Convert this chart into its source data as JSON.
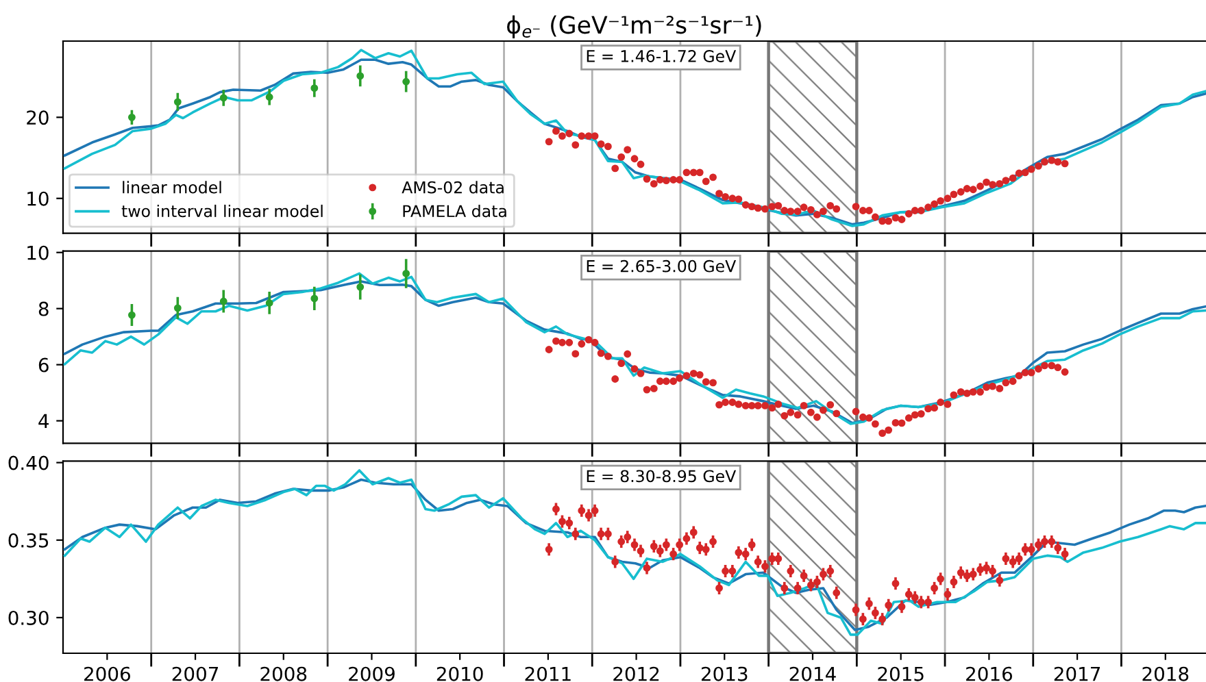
{
  "chart_data": [
    {
      "type": "line",
      "title": "ϕ$_{e⁻}$ (GeV⁻¹m⁻²s⁻¹sr⁻¹)",
      "annotations": [
        "E = 1.46-1.72 GeV"
      ],
      "xlim": [
        2006.0,
        2018.96
      ],
      "xticks": [
        {
          "value": 2007,
          "label": null
        },
        {
          "value": 2008,
          "label": null
        },
        {
          "value": 2009,
          "label": null
        },
        {
          "value": 2010,
          "label": null
        },
        {
          "value": 2011,
          "label": null
        },
        {
          "value": 2012,
          "label": null
        },
        {
          "value": 2013,
          "label": null
        },
        {
          "value": 2014,
          "label": null
        },
        {
          "value": 2015,
          "label": null
        },
        {
          "value": 2016,
          "label": null
        },
        {
          "value": 2017,
          "label": null
        },
        {
          "value": 2018,
          "label": null
        }
      ],
      "ylim": [
        5.7,
        29.4
      ],
      "yticks": [
        10,
        20
      ],
      "grid": "x",
      "legend": "bottom left",
      "tick_labels": "y",
      "bands": [
        {
          "axis": "x",
          "from": 2014,
          "to": 2015,
          "color": "#777777"
        }
      ],
      "series": [
        {
          "name": "linear model",
          "color": "#1f77b4",
          "x": [
            2006.02,
            2006.33,
            2006.59,
            2006.79,
            2007.0,
            2007.08,
            2007.21,
            2007.31,
            2007.47,
            2007.67,
            2007.78,
            2007.93,
            2008.24,
            2008.4,
            2008.61,
            2008.81,
            2009.0,
            2009.18,
            2009.38,
            2009.54,
            2009.69,
            2009.85,
            2009.95,
            2010.13,
            2010.26,
            2010.39,
            2010.52,
            2010.68,
            2010.83,
            2010.99,
            2011.15,
            2011.3,
            2011.46,
            2011.72,
            2011.87,
            2012.03,
            2012.18,
            2012.34,
            2012.49,
            2012.65,
            2012.8,
            2013.0,
            2013.22,
            2013.48,
            2013.68,
            2013.94,
            2014.15,
            2014.31,
            2014.51,
            2014.72,
            2014.95,
            2015.08,
            2015.29,
            2015.5,
            2015.7,
            2015.96,
            2016.22,
            2016.48,
            2016.74,
            2016.95,
            2017.16,
            2017.36,
            2017.57,
            2017.78,
            2017.98,
            2018.19,
            2018.45,
            2018.66,
            2018.81,
            2018.95
          ],
          "values": [
            15.3,
            16.9,
            17.9,
            18.7,
            18.9,
            19.0,
            19.7,
            21.1,
            21.7,
            22.5,
            23.1,
            23.4,
            23.3,
            24.0,
            25.4,
            25.6,
            25.5,
            25.9,
            27.1,
            27.1,
            26.6,
            26.8,
            26.5,
            24.8,
            23.8,
            23.8,
            24.4,
            24.6,
            24.0,
            23.7,
            22.0,
            20.6,
            19.2,
            18.3,
            17.6,
            17.2,
            14.9,
            14.5,
            13.2,
            12.7,
            12.5,
            12.3,
            11.2,
            9.8,
            9.4,
            8.7,
            8.2,
            7.9,
            8.1,
            7.6,
            6.8,
            7.0,
            7.6,
            8.3,
            8.4,
            9.0,
            9.7,
            11.0,
            12.4,
            13.8,
            15.1,
            15.5,
            16.4,
            17.3,
            18.5,
            19.7,
            21.5,
            21.7,
            22.5,
            22.9
          ]
        },
        {
          "name": "two interval linear model",
          "color": "#17becf",
          "x": [
            2006.02,
            2006.33,
            2006.59,
            2006.79,
            2007.0,
            2007.16,
            2007.28,
            2007.36,
            2007.47,
            2007.67,
            2007.83,
            2007.98,
            2008.14,
            2008.35,
            2008.5,
            2008.71,
            2008.92,
            2009.12,
            2009.28,
            2009.38,
            2009.54,
            2009.69,
            2009.82,
            2009.95,
            2010.13,
            2010.26,
            2010.47,
            2010.63,
            2010.78,
            2010.99,
            2011.15,
            2011.3,
            2011.46,
            2011.59,
            2011.72,
            2011.87,
            2012.03,
            2012.18,
            2012.34,
            2012.47,
            2012.59,
            2012.8,
            2013.0,
            2013.22,
            2013.48,
            2013.68,
            2013.94,
            2014.15,
            2014.31,
            2014.51,
            2014.72,
            2014.95,
            2015.08,
            2015.29,
            2015.5,
            2015.7,
            2015.96,
            2016.22,
            2016.48,
            2016.74,
            2016.95,
            2017.16,
            2017.36,
            2017.57,
            2017.78,
            2017.98,
            2018.19,
            2018.45,
            2018.66,
            2018.81,
            2018.95
          ],
          "values": [
            13.7,
            15.5,
            16.6,
            18.3,
            18.6,
            19.2,
            20.3,
            19.9,
            20.6,
            21.7,
            22.5,
            22.1,
            22.1,
            23.2,
            24.5,
            25.3,
            25.5,
            26.2,
            27.3,
            28.3,
            27.3,
            27.9,
            27.5,
            28.2,
            24.8,
            24.8,
            25.3,
            25.5,
            24.1,
            24.4,
            22.0,
            20.4,
            19.2,
            19.6,
            18.0,
            17.7,
            17.2,
            14.6,
            14.5,
            12.5,
            12.8,
            12.5,
            12.1,
            11.0,
            9.4,
            9.5,
            8.9,
            8.1,
            8.0,
            8.5,
            7.4,
            6.6,
            6.8,
            7.9,
            8.3,
            8.3,
            8.9,
            9.4,
            10.7,
            11.8,
            13.5,
            14.5,
            14.9,
            15.9,
            16.9,
            18.1,
            19.4,
            21.3,
            21.7,
            22.8,
            23.2
          ]
        },
        {
          "name": "AMS-02 data",
          "type": "scatter",
          "marker": "circle",
          "color": "#d62728",
          "x": [
            2011.51,
            2011.59,
            2011.66,
            2011.74,
            2011.81,
            2011.88,
            2011.96,
            2012.03,
            2012.1,
            2012.18,
            2012.26,
            2012.33,
            2012.4,
            2012.48,
            2012.55,
            2012.62,
            2012.7,
            2012.77,
            2012.84,
            2012.92,
            2012.99,
            2013.07,
            2013.15,
            2013.22,
            2013.29,
            2013.37,
            2013.44,
            2013.51,
            2013.59,
            2013.66,
            2013.74,
            2013.81,
            2013.88,
            2013.96,
            2014.04,
            2014.11,
            2014.18,
            2014.25,
            2014.33,
            2014.4,
            2014.48,
            2014.55,
            2014.62,
            2014.7,
            2014.77,
            2014.99,
            2015.07,
            2015.14,
            2015.21,
            2015.29,
            2015.36,
            2015.44,
            2015.51,
            2015.59,
            2015.66,
            2015.73,
            2015.81,
            2015.88,
            2015.95,
            2016.03,
            2016.1,
            2016.18,
            2016.25,
            2016.32,
            2016.4,
            2016.47,
            2016.54,
            2016.62,
            2016.69,
            2016.77,
            2016.84,
            2016.91,
            2016.98,
            2017.06,
            2017.13,
            2017.21,
            2017.28,
            2017.36
          ],
          "values": [
            17.0,
            18.3,
            17.7,
            18.0,
            16.6,
            17.7,
            17.7,
            17.7,
            16.7,
            16.4,
            13.7,
            15.1,
            16.0,
            14.9,
            14.2,
            12.4,
            11.8,
            12.3,
            12.2,
            12.3,
            12.3,
            13.2,
            13.2,
            13.2,
            12.1,
            12.6,
            10.6,
            10.2,
            10.0,
            9.9,
            9.2,
            9.0,
            8.8,
            8.7,
            9.0,
            9.1,
            8.5,
            8.4,
            8.4,
            8.9,
            8.6,
            8.0,
            8.4,
            9.1,
            8.7,
            9.0,
            8.5,
            8.5,
            7.7,
            7.2,
            7.2,
            7.6,
            7.4,
            8.1,
            8.5,
            8.5,
            8.9,
            9.3,
            9.7,
            10.0,
            10.5,
            10.8,
            11.2,
            11.1,
            11.5,
            12.0,
            11.7,
            11.8,
            12.2,
            12.5,
            13.1,
            13.2,
            13.6,
            14.0,
            14.5,
            14.7,
            14.5,
            14.3
          ]
        },
        {
          "name": "PAMELA data",
          "type": "scatter",
          "marker": "circle",
          "color": "#2ca02c",
          "x": [
            2006.78,
            2007.3,
            2007.82,
            2008.34,
            2008.85,
            2009.37,
            2009.89
          ],
          "values": [
            20.0,
            21.9,
            22.4,
            22.5,
            23.6,
            25.1,
            24.4
          ],
          "errors": [
            0.9,
            1.1,
            1.0,
            1.0,
            1.1,
            1.3,
            1.3
          ]
        }
      ]
    },
    {
      "type": "line",
      "annotations": [
        "E = 2.65-3.00 GeV"
      ],
      "xlim": [
        2006.0,
        2018.96
      ],
      "xticks": [
        {
          "value": 2007,
          "label": null
        },
        {
          "value": 2008,
          "label": null
        },
        {
          "value": 2009,
          "label": null
        },
        {
          "value": 2010,
          "label": null
        },
        {
          "value": 2011,
          "label": null
        },
        {
          "value": 2012,
          "label": null
        },
        {
          "value": 2013,
          "label": null
        },
        {
          "value": 2014,
          "label": null
        },
        {
          "value": 2015,
          "label": null
        },
        {
          "value": 2016,
          "label": null
        },
        {
          "value": 2017,
          "label": null
        },
        {
          "value": 2018,
          "label": null
        }
      ],
      "ylim": [
        3.2,
        10.05
      ],
      "yticks": [
        4,
        6,
        8,
        10
      ],
      "grid": "x",
      "tick_labels": "y",
      "bands": [
        {
          "axis": "x",
          "from": 2014,
          "to": 2015,
          "color": "#777777"
        }
      ],
      "series": [
        {
          "color": "#1f77b4",
          "x": [
            2006.02,
            2006.22,
            2006.48,
            2006.69,
            2007.0,
            2007.08,
            2007.28,
            2007.47,
            2007.73,
            2007.98,
            2008.19,
            2008.5,
            2008.71,
            2008.92,
            2009.18,
            2009.38,
            2009.59,
            2009.85,
            2009.95,
            2010.11,
            2010.26,
            2010.42,
            2010.68,
            2010.83,
            2010.99,
            2011.25,
            2011.46,
            2011.72,
            2011.87,
            2011.97,
            2012.18,
            2012.34,
            2012.49,
            2012.65,
            2012.8,
            2013.0,
            2013.22,
            2013.48,
            2013.68,
            2013.94,
            2014.15,
            2014.31,
            2014.51,
            2014.72,
            2014.95,
            2015.13,
            2015.34,
            2015.5,
            2015.7,
            2015.96,
            2016.22,
            2016.48,
            2016.69,
            2016.84,
            2017.0,
            2017.16,
            2017.36,
            2017.57,
            2017.78,
            2017.98,
            2018.19,
            2018.45,
            2018.66,
            2018.81,
            2018.95
          ],
          "values": [
            6.39,
            6.72,
            7.0,
            7.16,
            7.21,
            7.21,
            7.77,
            7.9,
            8.18,
            8.18,
            8.2,
            8.59,
            8.62,
            8.66,
            8.84,
            8.97,
            8.84,
            8.85,
            8.8,
            8.31,
            8.1,
            8.23,
            8.39,
            8.23,
            8.18,
            7.57,
            7.25,
            7.11,
            6.92,
            6.89,
            6.26,
            6.18,
            5.85,
            5.72,
            5.69,
            5.61,
            5.28,
            4.92,
            4.87,
            4.7,
            4.54,
            4.43,
            4.54,
            4.33,
            3.92,
            4.05,
            4.43,
            4.54,
            4.49,
            4.66,
            4.95,
            5.36,
            5.52,
            5.61,
            6.07,
            6.43,
            6.48,
            6.72,
            6.92,
            7.21,
            7.49,
            7.82,
            7.82,
            7.98,
            8.07
          ]
        },
        {
          "color": "#17becf",
          "x": [
            2006.02,
            2006.2,
            2006.33,
            2006.48,
            2006.61,
            2006.77,
            2006.92,
            2007.08,
            2007.28,
            2007.41,
            2007.57,
            2007.73,
            2007.88,
            2008.09,
            2008.3,
            2008.5,
            2008.71,
            2008.92,
            2009.12,
            2009.36,
            2009.51,
            2009.69,
            2009.82,
            2009.95,
            2010.11,
            2010.24,
            2010.42,
            2010.68,
            2010.83,
            2010.99,
            2011.25,
            2011.46,
            2011.59,
            2011.72,
            2011.92,
            2012.03,
            2012.23,
            2012.34,
            2012.47,
            2012.59,
            2012.8,
            2013.0,
            2013.22,
            2013.48,
            2013.63,
            2013.79,
            2013.94,
            2014.15,
            2014.33,
            2014.54,
            2014.72,
            2014.93,
            2015.08,
            2015.29,
            2015.5,
            2015.7,
            2015.96,
            2016.22,
            2016.48,
            2016.74,
            2016.95,
            2017.16,
            2017.36,
            2017.57,
            2017.78,
            2017.98,
            2018.19,
            2018.45,
            2018.66,
            2018.81,
            2018.95
          ],
          "values": [
            6.02,
            6.51,
            6.43,
            6.84,
            6.72,
            7.0,
            6.72,
            7.08,
            7.69,
            7.46,
            7.9,
            7.9,
            8.1,
            7.93,
            8.1,
            8.52,
            8.59,
            8.72,
            8.92,
            9.25,
            8.89,
            9.1,
            8.97,
            9.13,
            8.31,
            8.23,
            8.39,
            8.52,
            8.23,
            8.36,
            7.52,
            7.16,
            7.36,
            7.08,
            6.92,
            6.84,
            6.23,
            6.23,
            5.61,
            5.9,
            5.69,
            5.77,
            5.31,
            4.82,
            5.11,
            4.98,
            4.87,
            4.62,
            4.46,
            4.7,
            4.3,
            3.89,
            3.97,
            4.38,
            4.54,
            4.49,
            4.62,
            4.95,
            5.28,
            5.52,
            5.8,
            6.13,
            6.18,
            6.51,
            6.75,
            7.08,
            7.36,
            7.66,
            7.66,
            7.9,
            7.93
          ]
        },
        {
          "type": "scatter",
          "marker": "circle",
          "color": "#d62728",
          "x": [
            2011.51,
            2011.59,
            2011.66,
            2011.74,
            2011.81,
            2011.88,
            2011.96,
            2012.03,
            2012.1,
            2012.18,
            2012.26,
            2012.33,
            2012.4,
            2012.48,
            2012.55,
            2012.62,
            2012.7,
            2012.77,
            2012.84,
            2012.92,
            2012.99,
            2013.07,
            2013.15,
            2013.22,
            2013.29,
            2013.37,
            2013.44,
            2013.51,
            2013.59,
            2013.66,
            2013.74,
            2013.81,
            2013.88,
            2013.96,
            2014.04,
            2014.11,
            2014.18,
            2014.25,
            2014.33,
            2014.4,
            2014.48,
            2014.55,
            2014.62,
            2014.7,
            2014.77,
            2014.99,
            2015.07,
            2015.14,
            2015.21,
            2015.29,
            2015.36,
            2015.44,
            2015.51,
            2015.59,
            2015.66,
            2015.73,
            2015.81,
            2015.88,
            2015.95,
            2016.03,
            2016.1,
            2016.18,
            2016.25,
            2016.32,
            2016.4,
            2016.47,
            2016.54,
            2016.62,
            2016.69,
            2016.77,
            2016.84,
            2016.91,
            2016.98,
            2017.06,
            2017.13,
            2017.21,
            2017.28,
            2017.36
          ],
          "values": [
            6.54,
            6.84,
            6.79,
            6.79,
            6.39,
            6.74,
            6.89,
            6.79,
            6.41,
            6.3,
            5.49,
            6.05,
            6.38,
            5.85,
            5.69,
            5.11,
            5.15,
            5.41,
            5.41,
            5.41,
            5.52,
            5.61,
            5.69,
            5.64,
            5.39,
            5.36,
            4.57,
            4.66,
            4.66,
            4.59,
            4.54,
            4.54,
            4.54,
            4.54,
            4.46,
            4.59,
            4.18,
            4.3,
            4.21,
            4.54,
            4.3,
            4.13,
            4.38,
            4.57,
            4.26,
            4.33,
            4.13,
            4.1,
            3.89,
            3.56,
            3.67,
            3.93,
            3.92,
            4.1,
            4.21,
            4.25,
            4.43,
            4.46,
            4.66,
            4.59,
            4.92,
            5.03,
            4.98,
            5.03,
            5.03,
            5.2,
            5.23,
            5.15,
            5.36,
            5.41,
            5.61,
            5.72,
            5.72,
            5.85,
            5.97,
            5.97,
            5.9,
            5.74
          ]
        },
        {
          "type": "scatter",
          "marker": "circle",
          "color": "#2ca02c",
          "x": [
            2006.78,
            2007.3,
            2007.82,
            2008.34,
            2008.85,
            2009.37,
            2009.89
          ],
          "values": [
            7.77,
            8.02,
            8.26,
            8.2,
            8.36,
            8.77,
            9.25
          ],
          "errors": [
            0.39,
            0.39,
            0.4,
            0.4,
            0.42,
            0.45,
            0.52
          ]
        }
      ]
    },
    {
      "type": "line",
      "annotations": [
        "E = 8.30-8.95 GeV"
      ],
      "xlim": [
        2006.0,
        2018.96
      ],
      "xticks": [
        {
          "value": 2006.5,
          "label": "2006"
        },
        {
          "value": 2007,
          "label": null
        },
        {
          "value": 2007.5,
          "label": "2007"
        },
        {
          "value": 2008,
          "label": null
        },
        {
          "value": 2008.5,
          "label": "2008"
        },
        {
          "value": 2009,
          "label": null
        },
        {
          "value": 2009.5,
          "label": "2009"
        },
        {
          "value": 2010,
          "label": null
        },
        {
          "value": 2010.5,
          "label": "2010"
        },
        {
          "value": 2011,
          "label": null
        },
        {
          "value": 2011.5,
          "label": "2011"
        },
        {
          "value": 2012,
          "label": null
        },
        {
          "value": 2012.5,
          "label": "2012"
        },
        {
          "value": 2013,
          "label": null
        },
        {
          "value": 2013.5,
          "label": "2013"
        },
        {
          "value": 2014,
          "label": null
        },
        {
          "value": 2014.5,
          "label": "2014"
        },
        {
          "value": 2015,
          "label": null
        },
        {
          "value": 2015.5,
          "label": "2015"
        },
        {
          "value": 2016,
          "label": null
        },
        {
          "value": 2016.5,
          "label": "2016"
        },
        {
          "value": 2017,
          "label": null
        },
        {
          "value": 2017.5,
          "label": "2017"
        },
        {
          "value": 2018,
          "label": null
        },
        {
          "value": 2018.5,
          "label": "2018"
        }
      ],
      "ylim": [
        0.277,
        0.401
      ],
      "yticks": [
        {
          "value": 0.3,
          "label": "0.30"
        },
        {
          "value": 0.35,
          "label": "0.35"
        },
        {
          "value": 0.4,
          "label": "0.40"
        }
      ],
      "grid": "x",
      "bands": [
        {
          "axis": "x",
          "from": 2014,
          "to": 2015,
          "color": "#777777"
        }
      ],
      "series": [
        {
          "color": "#1f77b4",
          "x": [
            2006.02,
            2006.22,
            2006.48,
            2006.64,
            2006.84,
            2007.05,
            2007.26,
            2007.47,
            2007.62,
            2007.78,
            2007.98,
            2008.19,
            2008.4,
            2008.61,
            2008.81,
            2009.02,
            2009.18,
            2009.38,
            2009.54,
            2009.75,
            2009.95,
            2010.11,
            2010.26,
            2010.42,
            2010.58,
            2010.73,
            2010.89,
            2011.04,
            2011.25,
            2011.46,
            2011.72,
            2011.87,
            2012.03,
            2012.18,
            2012.34,
            2012.49,
            2012.65,
            2012.8,
            2013.0,
            2013.22,
            2013.37,
            2013.55,
            2013.74,
            2013.94,
            2014.15,
            2014.31,
            2014.46,
            2014.62,
            2014.77,
            2014.98,
            2015.13,
            2015.34,
            2015.55,
            2015.7,
            2015.81,
            2016.02,
            2016.22,
            2016.43,
            2016.64,
            2016.79,
            2017.0,
            2017.16,
            2017.31,
            2017.47,
            2017.67,
            2017.88,
            2018.09,
            2018.3,
            2018.48,
            2018.61,
            2018.71,
            2018.84,
            2018.95
          ],
          "values": [
            0.344,
            0.352,
            0.358,
            0.36,
            0.359,
            0.357,
            0.366,
            0.371,
            0.371,
            0.376,
            0.374,
            0.375,
            0.38,
            0.383,
            0.382,
            0.382,
            0.384,
            0.389,
            0.387,
            0.386,
            0.386,
            0.376,
            0.369,
            0.37,
            0.374,
            0.376,
            0.373,
            0.372,
            0.361,
            0.356,
            0.355,
            0.352,
            0.352,
            0.339,
            0.336,
            0.335,
            0.332,
            0.337,
            0.339,
            0.332,
            0.326,
            0.322,
            0.328,
            0.329,
            0.32,
            0.316,
            0.318,
            0.319,
            0.305,
            0.292,
            0.294,
            0.3,
            0.311,
            0.31,
            0.308,
            0.31,
            0.313,
            0.322,
            0.329,
            0.329,
            0.34,
            0.349,
            0.348,
            0.347,
            0.351,
            0.355,
            0.36,
            0.364,
            0.369,
            0.369,
            0.368,
            0.371,
            0.372
          ]
        },
        {
          "color": "#17becf",
          "x": [
            2006.02,
            2006.2,
            2006.3,
            2006.48,
            2006.64,
            2006.77,
            2006.94,
            2007.08,
            2007.3,
            2007.44,
            2007.57,
            2007.73,
            2007.88,
            2008.09,
            2008.3,
            2008.5,
            2008.63,
            2008.76,
            2008.87,
            2008.97,
            2009.07,
            2009.2,
            2009.36,
            2009.51,
            2009.69,
            2009.82,
            2009.95,
            2010.11,
            2010.21,
            2010.37,
            2010.52,
            2010.68,
            2010.83,
            2010.99,
            2011.2,
            2011.35,
            2011.46,
            2011.59,
            2011.72,
            2011.87,
            2012.03,
            2012.18,
            2012.34,
            2012.47,
            2012.62,
            2012.8,
            2013.0,
            2013.22,
            2013.42,
            2013.55,
            2013.74,
            2013.89,
            2013.99,
            2014.1,
            2014.25,
            2014.41,
            2014.54,
            2014.67,
            2014.82,
            2014.93,
            2015.01,
            2015.16,
            2015.29,
            2015.42,
            2015.6,
            2015.7,
            2015.91,
            2016.12,
            2016.33,
            2016.48,
            2016.64,
            2016.79,
            2017.0,
            2017.16,
            2017.31,
            2017.39,
            2017.57,
            2017.78,
            2017.98,
            2018.19,
            2018.45,
            2018.55,
            2018.71,
            2018.84,
            2018.95
          ],
          "values": [
            0.34,
            0.351,
            0.349,
            0.358,
            0.352,
            0.36,
            0.349,
            0.36,
            0.371,
            0.364,
            0.372,
            0.376,
            0.374,
            0.372,
            0.376,
            0.381,
            0.383,
            0.379,
            0.385,
            0.385,
            0.382,
            0.386,
            0.395,
            0.386,
            0.39,
            0.387,
            0.389,
            0.37,
            0.369,
            0.373,
            0.378,
            0.379,
            0.371,
            0.377,
            0.364,
            0.357,
            0.354,
            0.361,
            0.352,
            0.356,
            0.35,
            0.339,
            0.335,
            0.325,
            0.338,
            0.336,
            0.341,
            0.333,
            0.324,
            0.321,
            0.336,
            0.327,
            0.327,
            0.314,
            0.316,
            0.319,
            0.322,
            0.303,
            0.3,
            0.289,
            0.289,
            0.298,
            0.296,
            0.31,
            0.311,
            0.307,
            0.31,
            0.31,
            0.317,
            0.323,
            0.324,
            0.326,
            0.338,
            0.34,
            0.339,
            0.336,
            0.342,
            0.345,
            0.349,
            0.352,
            0.357,
            0.359,
            0.357,
            0.361,
            0.361
          ]
        },
        {
          "type": "scatter",
          "marker": "circle",
          "color": "#d62728",
          "x": [
            2011.51,
            2011.59,
            2011.66,
            2011.74,
            2011.81,
            2011.88,
            2011.96,
            2012.03,
            2012.1,
            2012.18,
            2012.26,
            2012.33,
            2012.4,
            2012.48,
            2012.55,
            2012.62,
            2012.7,
            2012.77,
            2012.84,
            2012.92,
            2012.99,
            2013.07,
            2013.15,
            2013.22,
            2013.29,
            2013.37,
            2013.44,
            2013.51,
            2013.59,
            2013.66,
            2013.74,
            2013.81,
            2013.88,
            2013.96,
            2014.04,
            2014.11,
            2014.18,
            2014.25,
            2014.33,
            2014.4,
            2014.48,
            2014.55,
            2014.62,
            2014.7,
            2014.77,
            2014.99,
            2015.07,
            2015.14,
            2015.21,
            2015.29,
            2015.36,
            2015.44,
            2015.51,
            2015.59,
            2015.66,
            2015.73,
            2015.81,
            2015.88,
            2015.95,
            2016.03,
            2016.1,
            2016.18,
            2016.25,
            2016.32,
            2016.4,
            2016.47,
            2016.54,
            2016.62,
            2016.69,
            2016.77,
            2016.84,
            2016.91,
            2016.98,
            2017.06,
            2017.13,
            2017.21,
            2017.28,
            2017.36
          ],
          "values": [
            0.344,
            0.37,
            0.362,
            0.361,
            0.354,
            0.369,
            0.366,
            0.369,
            0.354,
            0.354,
            0.336,
            0.349,
            0.352,
            0.347,
            0.343,
            0.332,
            0.346,
            0.343,
            0.347,
            0.341,
            0.347,
            0.351,
            0.355,
            0.345,
            0.344,
            0.349,
            0.319,
            0.33,
            0.33,
            0.342,
            0.341,
            0.347,
            0.336,
            0.333,
            0.338,
            0.338,
            0.319,
            0.33,
            0.319,
            0.327,
            0.321,
            0.323,
            0.328,
            0.33,
            0.316,
            0.305,
            0.299,
            0.309,
            0.303,
            0.299,
            0.308,
            0.322,
            0.307,
            0.315,
            0.313,
            0.31,
            0.31,
            0.319,
            0.325,
            0.315,
            0.323,
            0.329,
            0.327,
            0.328,
            0.331,
            0.332,
            0.33,
            0.324,
            0.338,
            0.336,
            0.338,
            0.344,
            0.344,
            0.347,
            0.349,
            0.349,
            0.345,
            0.341
          ],
          "errors": [
            0.004,
            0.004,
            0.004,
            0.004,
            0.004,
            0.004,
            0.004,
            0.004,
            0.004,
            0.004,
            0.004,
            0.004,
            0.004,
            0.004,
            0.004,
            0.004,
            0.004,
            0.004,
            0.004,
            0.004,
            0.004,
            0.004,
            0.004,
            0.004,
            0.004,
            0.004,
            0.004,
            0.004,
            0.004,
            0.004,
            0.004,
            0.004,
            0.004,
            0.004,
            0.004,
            0.004,
            0.004,
            0.004,
            0.004,
            0.004,
            0.004,
            0.004,
            0.004,
            0.004,
            0.004,
            0.004,
            0.004,
            0.004,
            0.004,
            0.004,
            0.004,
            0.004,
            0.004,
            0.004,
            0.004,
            0.004,
            0.004,
            0.004,
            0.004,
            0.004,
            0.004,
            0.004,
            0.004,
            0.004,
            0.004,
            0.004,
            0.004,
            0.004,
            0.004,
            0.004,
            0.004,
            0.004,
            0.004,
            0.004,
            0.004,
            0.004,
            0.004,
            0.004
          ]
        }
      ]
    }
  ]
}
